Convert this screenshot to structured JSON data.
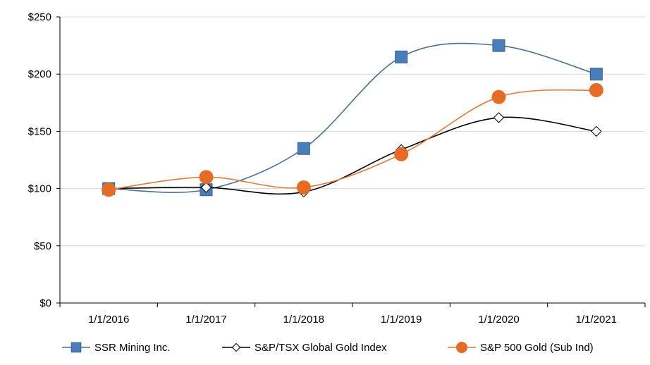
{
  "chart_data": {
    "type": "line",
    "title": "",
    "xlabel": "",
    "ylabel": "",
    "categories": [
      "1/1/2016",
      "1/1/2017",
      "1/1/2018",
      "1/1/2019",
      "1/1/2020",
      "1/1/2021"
    ],
    "ylim": [
      0,
      250
    ],
    "yticks": [
      0,
      50,
      100,
      150,
      200,
      250
    ],
    "ytick_labels": [
      "$0",
      "$50",
      "$100",
      "$150",
      "$200",
      "$250"
    ],
    "grid": true,
    "legend_position": "bottom",
    "series": [
      {
        "name": "SSR Mining Inc.",
        "marker": "square",
        "color": "#4a7ebb",
        "line_color": "#4a6f8f",
        "values": [
          100,
          99,
          135,
          215,
          225,
          200
        ]
      },
      {
        "name": "S&P/TSX Global Gold Index",
        "marker": "diamond",
        "color": "#ffffff",
        "line_color": "#000000",
        "values": [
          100,
          101,
          97,
          134,
          162,
          150
        ]
      },
      {
        "name": "S&P 500 Gold (Sub Ind)",
        "marker": "circle",
        "color": "#e46c25",
        "line_color": "#e07b3e",
        "values": [
          99,
          110,
          101,
          130,
          180,
          186
        ]
      }
    ]
  }
}
